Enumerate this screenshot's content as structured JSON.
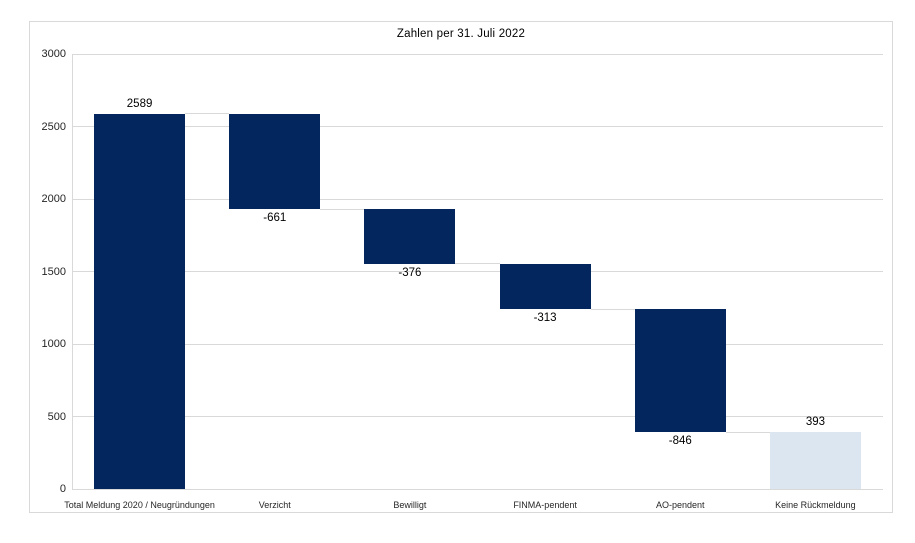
{
  "chart_data": {
    "type": "bar",
    "subtype": "waterfall",
    "title": "Zahlen per 31. Juli 2022",
    "categories": [
      "Total Meldung 2020 / Neugründungen",
      "Verzicht",
      "Bewilligt",
      "FINMA-pendent",
      "AO-pendent",
      "Keine Rückmeldung"
    ],
    "values": [
      2589,
      -661,
      -376,
      -313,
      -846,
      393
    ],
    "data_labels": [
      "2589",
      "-661",
      "-376",
      "-313",
      "-846",
      "393"
    ],
    "roles": [
      "increase",
      "decrease",
      "decrease",
      "decrease",
      "decrease",
      "total"
    ],
    "ylim": [
      0,
      3000
    ],
    "yticks": [
      0,
      500,
      1000,
      1500,
      2000,
      2500,
      3000
    ],
    "ytick_labels": [
      "0",
      "500",
      "1000",
      "1500",
      "2000",
      "2500",
      "3000"
    ],
    "grid": true,
    "legend": "none",
    "connectors": true,
    "colors": {
      "bar_dark": "#03265E",
      "bar_light": "#DCE6F1",
      "gridline": "#D9D9D9",
      "connector": "#D9D9D9",
      "frame_border": "#D9D9D9",
      "axis_label": "#262626",
      "data_label": "#000000",
      "background": "#FFFFFF"
    }
  }
}
